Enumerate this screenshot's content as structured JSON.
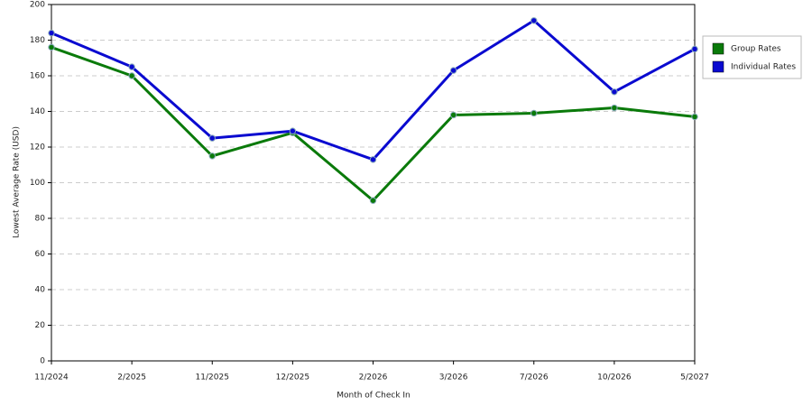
{
  "chart_data": {
    "type": "line",
    "x_label": "Month of Check In",
    "y_label": "Lowest Average Rate (USD)",
    "categories": [
      "11/2024",
      "2/2025",
      "11/2025",
      "12/2025",
      "2/2026",
      "3/2026",
      "7/2026",
      "10/2026",
      "5/2027"
    ],
    "series": [
      {
        "name": "Group Rates",
        "color": "#0a7a0a",
        "values": [
          176,
          160,
          115,
          128,
          90,
          138,
          139,
          142,
          137
        ]
      },
      {
        "name": "Individual Rates",
        "color": "#0a0ad0",
        "values": [
          184,
          165,
          125,
          129,
          113,
          163,
          191,
          151,
          175
        ]
      }
    ],
    "ylim": [
      0,
      200
    ],
    "yticks": [
      0,
      20,
      40,
      60,
      80,
      100,
      120,
      140,
      160,
      180,
      200
    ],
    "grid": true,
    "legend": "right"
  }
}
